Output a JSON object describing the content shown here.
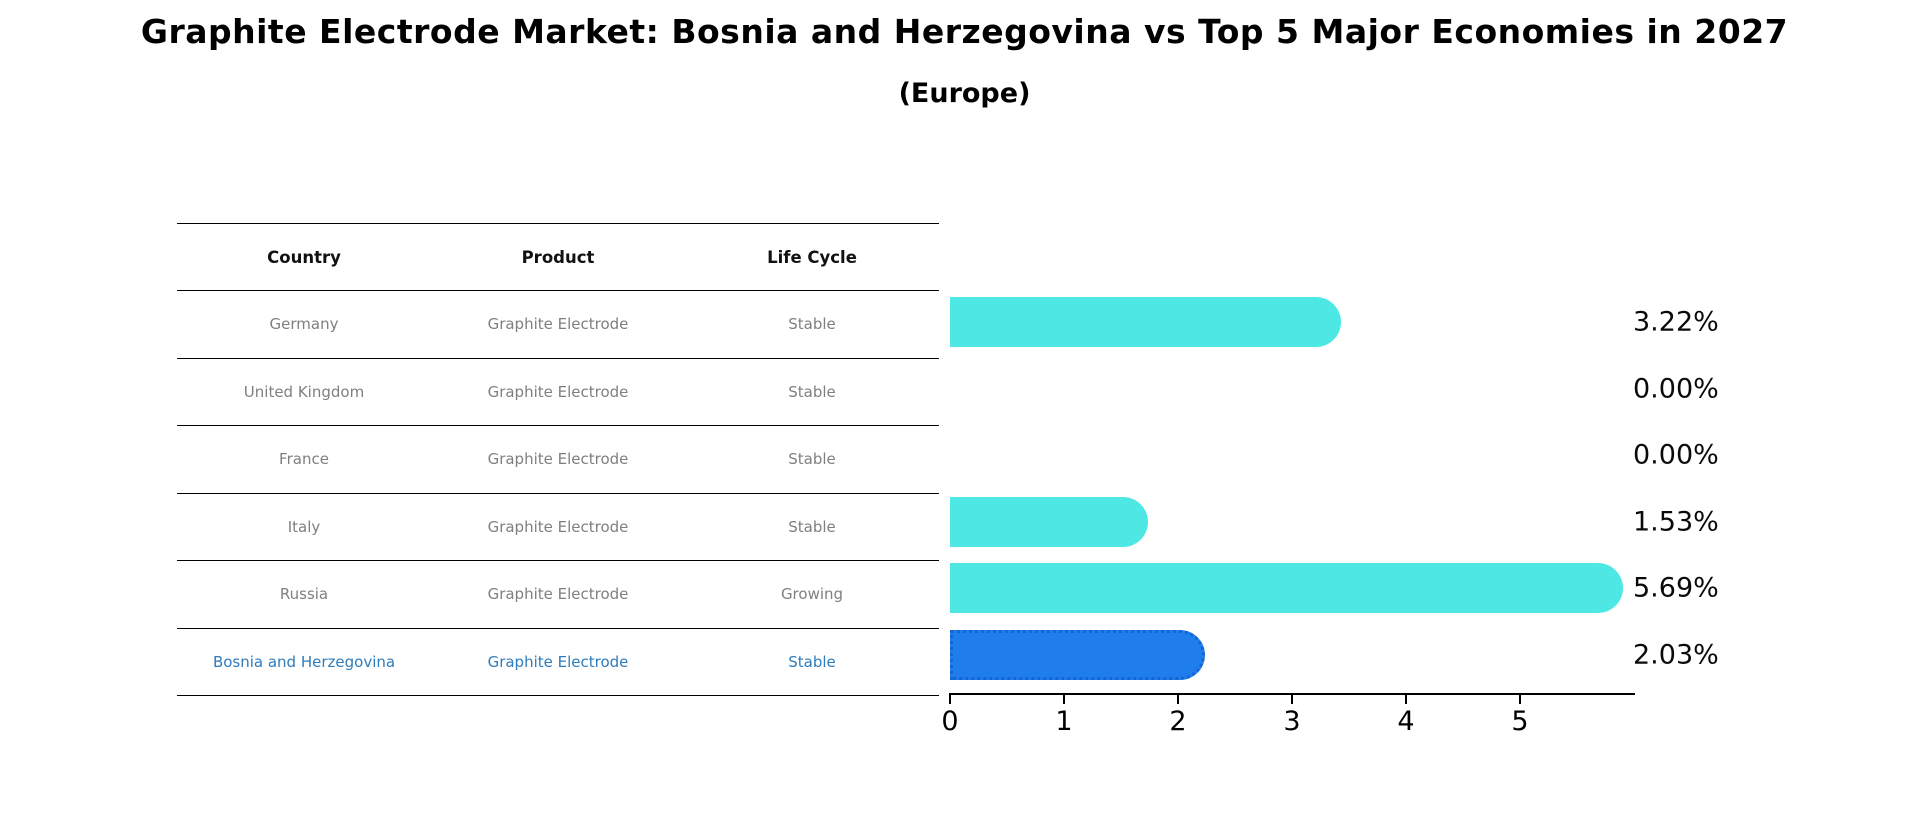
{
  "title": "Graphite Electrode Market: Bosnia and Herzegovina vs Top 5 Major Economies in 2027",
  "subtitle": "(Europe)",
  "table": {
    "columns": [
      "Country",
      "Product",
      "Life Cycle"
    ],
    "rows": [
      {
        "country": "Germany",
        "product": "Graphite Electrode",
        "life_cycle": "Stable"
      },
      {
        "country": "United Kingdom",
        "product": "Graphite Electrode",
        "life_cycle": "Stable"
      },
      {
        "country": "France",
        "product": "Graphite Electrode",
        "life_cycle": "Stable"
      },
      {
        "country": "Italy",
        "product": "Graphite Electrode",
        "life_cycle": "Stable"
      },
      {
        "country": "Russia",
        "product": "Graphite Electrode",
        "life_cycle": "Growing"
      },
      {
        "country": "Bosnia and Herzegovina",
        "product": "Graphite Electrode",
        "life_cycle": "Stable"
      }
    ]
  },
  "chart_data": {
    "type": "bar",
    "orientation": "horizontal",
    "title": "Graphite Electrode Market: Bosnia and Herzegovina vs Top 5 Major Economies in 2027 (Europe)",
    "categories": [
      "Germany",
      "United Kingdom",
      "France",
      "Italy",
      "Russia",
      "Bosnia and Herzegovina"
    ],
    "values": [
      3.22,
      0.0,
      0.0,
      1.53,
      5.69,
      2.03
    ],
    "labels": [
      "3.22%",
      "0.00%",
      "0.00%",
      "1.53%",
      "5.69%",
      "2.03%"
    ],
    "xlabel": "",
    "ylabel": "",
    "xlim": [
      0,
      6
    ],
    "xticks": [
      0,
      1,
      2,
      3,
      4,
      5
    ],
    "grid": false,
    "legend": "none",
    "highlight_index": 5
  },
  "colors": {
    "background": "#FFFFFF",
    "default_bar": "#4DE8E3",
    "highlight_bar": "#1F7DEC",
    "highlight_bar_border": "#1565D2",
    "highlight_text": "#2D7CBD",
    "row_text": "#7F7F7F",
    "header_text": "#111111",
    "axis": "#000000"
  }
}
